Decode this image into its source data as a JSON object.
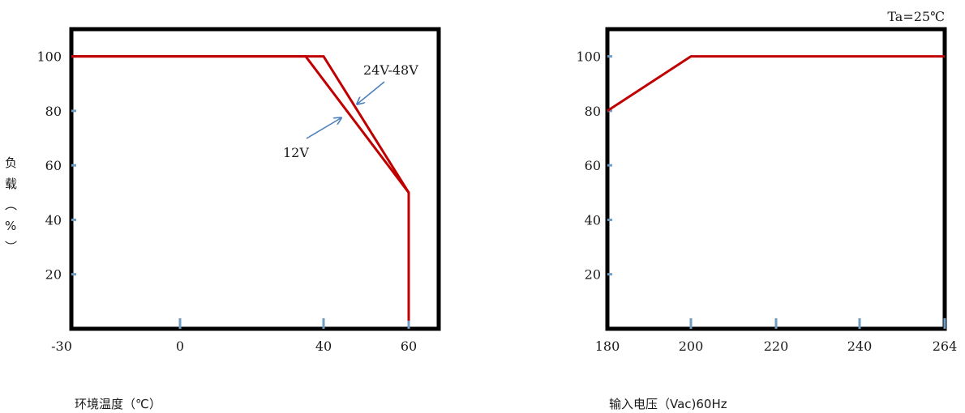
{
  "y_label_chars": [
    "负",
    "载",
    "︵",
    "%",
    "︶"
  ],
  "chart_data": [
    {
      "type": "line",
      "xlabel": "环境温度（℃）",
      "ylabel": "负载（%）",
      "x_tick_labels": [
        "-30",
        "0",
        "40",
        "60"
      ],
      "y_tick_labels": [
        "100",
        "80",
        "60",
        "40",
        "20"
      ],
      "y_ticks": [
        100,
        80,
        60,
        40,
        20
      ],
      "xlim": [
        -30,
        65
      ],
      "ylim": [
        0,
        110
      ],
      "series": [
        {
          "name": "24V-48V",
          "x": [
            -30,
            40,
            60,
            60
          ],
          "y": [
            100,
            100,
            50,
            3
          ]
        },
        {
          "name": "12V",
          "x": [
            -30,
            35,
            60,
            60
          ],
          "y": [
            100,
            100,
            50,
            3
          ]
        }
      ],
      "annotations": [
        "24V-48V",
        "12V"
      ],
      "line_color": "#c00000",
      "tick_color": "#6f9dc4",
      "arrow_color": "#4f81bd"
    },
    {
      "type": "line",
      "xlabel": "输入电压（Vac)60Hz",
      "ylabel": "负载（%）",
      "x_tick_labels": [
        "180",
        "200",
        "220",
        "240",
        "264"
      ],
      "y_tick_labels": [
        "100",
        "80",
        "60",
        "40",
        "20"
      ],
      "y_ticks": [
        100,
        80,
        60,
        40,
        20
      ],
      "xlim": [
        180,
        264
      ],
      "ylim": [
        0,
        110
      ],
      "series": [
        {
          "name": "",
          "x": [
            180,
            200,
            264
          ],
          "y": [
            80,
            100,
            100
          ]
        }
      ],
      "annotations": [
        "Ta=25℃"
      ],
      "line_color": "#c00000",
      "tick_color": "#6f9dc4"
    }
  ]
}
